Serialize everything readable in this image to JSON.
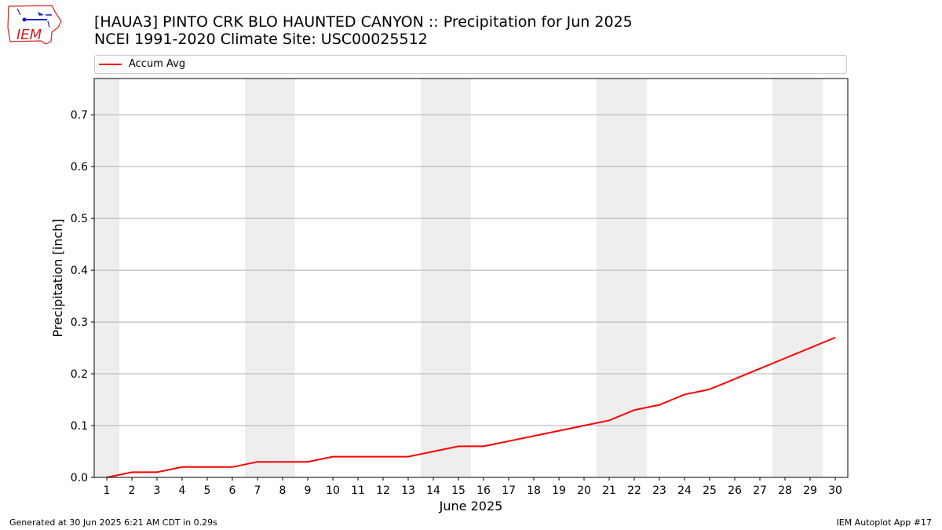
{
  "header": {
    "title_line1": "[HAUA3] PINTO CRK BLO HAUNTED CANYON :: Precipitation for Jun 2025",
    "title_line2": "NCEI 1991-2020 Climate Site: USC00025512",
    "logo_text": "IEM"
  },
  "footer": {
    "generated": "Generated at 30 Jun 2025 6:21 AM CDT in 0.29s",
    "app": "IEM Autoplot App #17"
  },
  "colors": {
    "series": "#ff0000",
    "weekend_band": "#eeeeee",
    "grid": "#b0b0b0",
    "logo_red": "#cc2222",
    "logo_blue": "#1a1acc"
  },
  "chart_data": {
    "type": "line",
    "title": "[HAUA3] PINTO CRK BLO HAUNTED CANYON :: Precipitation for Jun 2025",
    "subtitle": "NCEI 1991-2020 Climate Site: USC00025512",
    "xlabel": "June 2025",
    "ylabel": "Precipitation [inch]",
    "x": [
      1,
      2,
      3,
      4,
      5,
      6,
      7,
      8,
      9,
      10,
      11,
      12,
      13,
      14,
      15,
      16,
      17,
      18,
      19,
      20,
      21,
      22,
      23,
      24,
      25,
      26,
      27,
      28,
      29,
      30
    ],
    "xlim": [
      0.5,
      30.5
    ],
    "ylim": [
      0,
      0.77
    ],
    "yticks": [
      0.0,
      0.1,
      0.2,
      0.3,
      0.4,
      0.5,
      0.6,
      0.7
    ],
    "ytick_labels": [
      "0.0",
      "0.1",
      "0.2",
      "0.3",
      "0.4",
      "0.5",
      "0.6",
      "0.7"
    ],
    "xtick_labels": [
      "1",
      "2",
      "3",
      "4",
      "5",
      "6",
      "7",
      "8",
      "9",
      "10",
      "11",
      "12",
      "13",
      "14",
      "15",
      "16",
      "17",
      "18",
      "19",
      "20",
      "21",
      "22",
      "23",
      "24",
      "25",
      "26",
      "27",
      "28",
      "29",
      "30"
    ],
    "grid": "horizontal",
    "legend_position": "top",
    "weekend_days": [
      1,
      7,
      8,
      14,
      15,
      21,
      22,
      28,
      29
    ],
    "series": [
      {
        "name": "Accum Avg",
        "color": "#ff0000",
        "values": [
          0.0,
          0.01,
          0.01,
          0.02,
          0.02,
          0.02,
          0.03,
          0.03,
          0.03,
          0.04,
          0.04,
          0.04,
          0.04,
          0.05,
          0.06,
          0.06,
          0.07,
          0.08,
          0.09,
          0.1,
          0.11,
          0.13,
          0.14,
          0.16,
          0.17,
          0.19,
          0.21,
          0.23,
          0.25,
          0.27
        ]
      }
    ]
  }
}
